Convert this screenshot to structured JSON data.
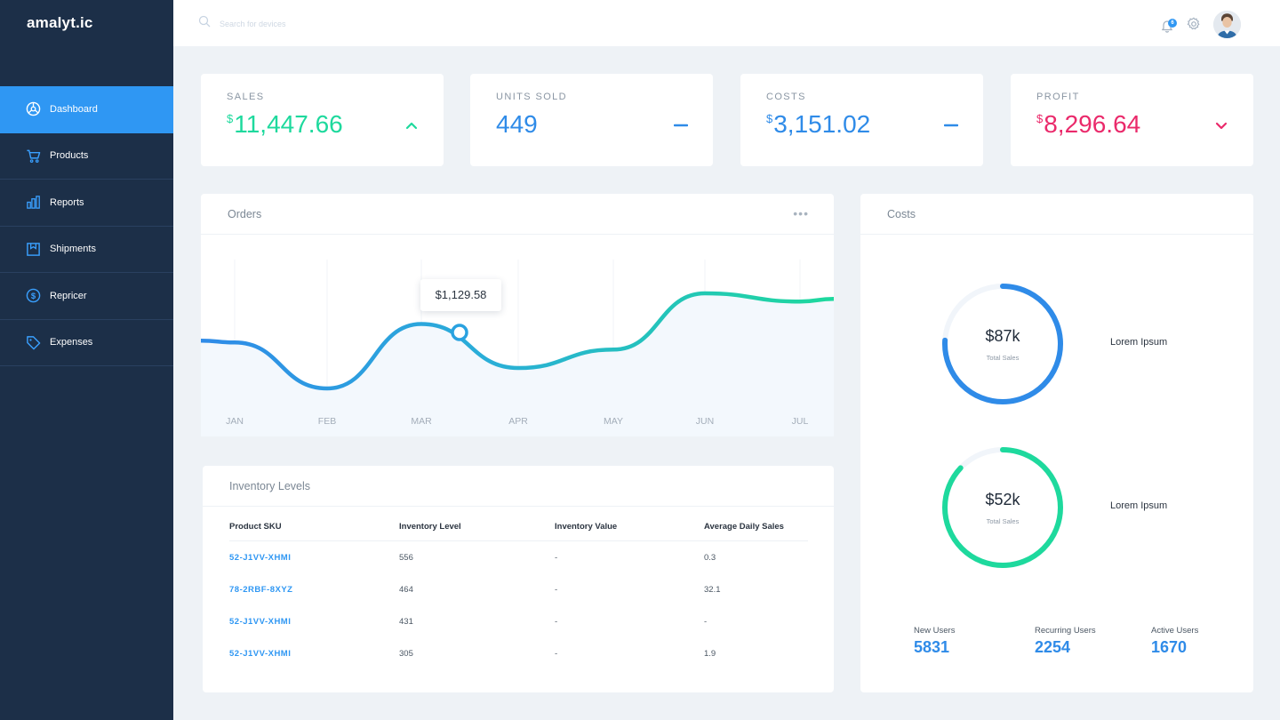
{
  "app": {
    "logo": "amalyt.ic"
  },
  "sidebar": {
    "items": [
      {
        "label": "Dashboard",
        "icon": "dashboard-icon",
        "active": true
      },
      {
        "label": "Products",
        "icon": "cart-icon"
      },
      {
        "label": "Reports",
        "icon": "bar-chart-icon"
      },
      {
        "label": "Shipments",
        "icon": "box-icon"
      },
      {
        "label": "Repricer",
        "icon": "dollar-icon"
      },
      {
        "label": "Expenses",
        "icon": "tag-icon"
      }
    ]
  },
  "topbar": {
    "search_placeholder": "Search for devices",
    "notifications_count": "6"
  },
  "stats": [
    {
      "label": "SALES",
      "currency": "$",
      "value": "11,447.66",
      "trend": "up",
      "color": "#1ed99d"
    },
    {
      "label": "UNITS SOLD",
      "currency": "",
      "value": "449",
      "trend": "flat",
      "color": "#2f8be8"
    },
    {
      "label": "COSTS",
      "currency": "$",
      "value": "3,151.02",
      "trend": "flat",
      "color": "#2f8be8"
    },
    {
      "label": "PROFIT",
      "currency": "$",
      "value": "8,296.64",
      "trend": "down",
      "color": "#ea2a6b"
    }
  ],
  "orders": {
    "title": "Orders",
    "more_label": "•••",
    "tooltip": "$1,129.58"
  },
  "chart_data": {
    "type": "line",
    "categories": [
      "JAN",
      "FEB",
      "MAR",
      "APR",
      "MAY",
      "JUN",
      "JUL"
    ],
    "series": [
      {
        "values": [
          0.45,
          0.0,
          0.63,
          0.2,
          0.38,
          0.93,
          0.85
        ]
      }
    ],
    "highlight_label": "$1,129.58",
    "xlabel": "",
    "ylabel": "",
    "grid": "vertical",
    "colors": [
      "#2f8be8",
      "#1ed99d"
    ]
  },
  "inventory": {
    "title": "Inventory Levels",
    "columns": [
      "Product SKU",
      "Inventory Level",
      "Inventory Value",
      "Average Daily Sales"
    ],
    "rows": [
      [
        "52-J1VV-XHMI",
        "556",
        "-",
        "0.3"
      ],
      [
        "78-2RBF-8XYZ",
        "464",
        "-",
        "32.1"
      ],
      [
        "52-J1VV-XHMI",
        "431",
        "-",
        "-"
      ],
      [
        "52-J1VV-XHMI",
        "305",
        "-",
        "1.9"
      ]
    ]
  },
  "costs": {
    "title": "Costs",
    "donuts": [
      {
        "value": "$87k",
        "sub": "Total Sales",
        "legend": "Lorem Ipsum",
        "progress": 0.76,
        "color": "#2f8be8"
      },
      {
        "value": "$52k",
        "sub": "Total Sales",
        "legend": "Lorem Ipsum",
        "progress": 0.87,
        "color": "#1ed99d"
      }
    ],
    "users": [
      {
        "label": "New Users",
        "value": "5831"
      },
      {
        "label": "Recurring Users",
        "value": "2254"
      },
      {
        "label": "Active Users",
        "value": "1670"
      }
    ]
  }
}
